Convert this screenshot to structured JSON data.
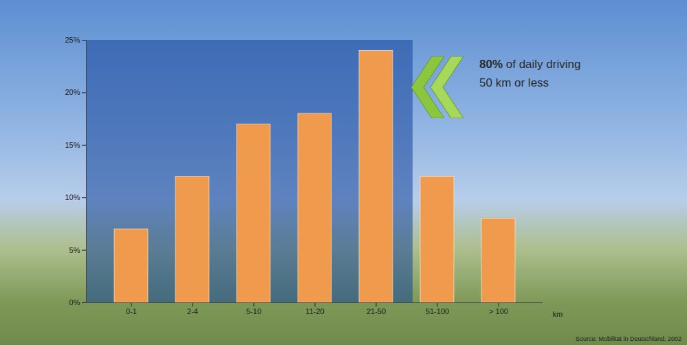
{
  "chart_data": {
    "type": "bar",
    "categories": [
      "0-1",
      "2-4",
      "5-10",
      "11-20",
      "21-50",
      "51-100",
      "> 100"
    ],
    "values": [
      7,
      12,
      17,
      18,
      24,
      12,
      8
    ],
    "color": "#f09a4e",
    "ylim": [
      0,
      25
    ],
    "yticks": [
      {
        "value": 0,
        "label": "0%"
      },
      {
        "value": 5,
        "label": "5%"
      },
      {
        "value": 10,
        "label": "10%"
      },
      {
        "value": 15,
        "label": "15%"
      },
      {
        "value": 20,
        "label": "20%"
      },
      {
        "value": 25,
        "label": "25%"
      }
    ],
    "x_label": "km",
    "annotation": [
      "80% of daily driving",
      "50 km or less"
    ],
    "source": "Source: Mobilität in Deutschland, 2002",
    "grid": false
  }
}
